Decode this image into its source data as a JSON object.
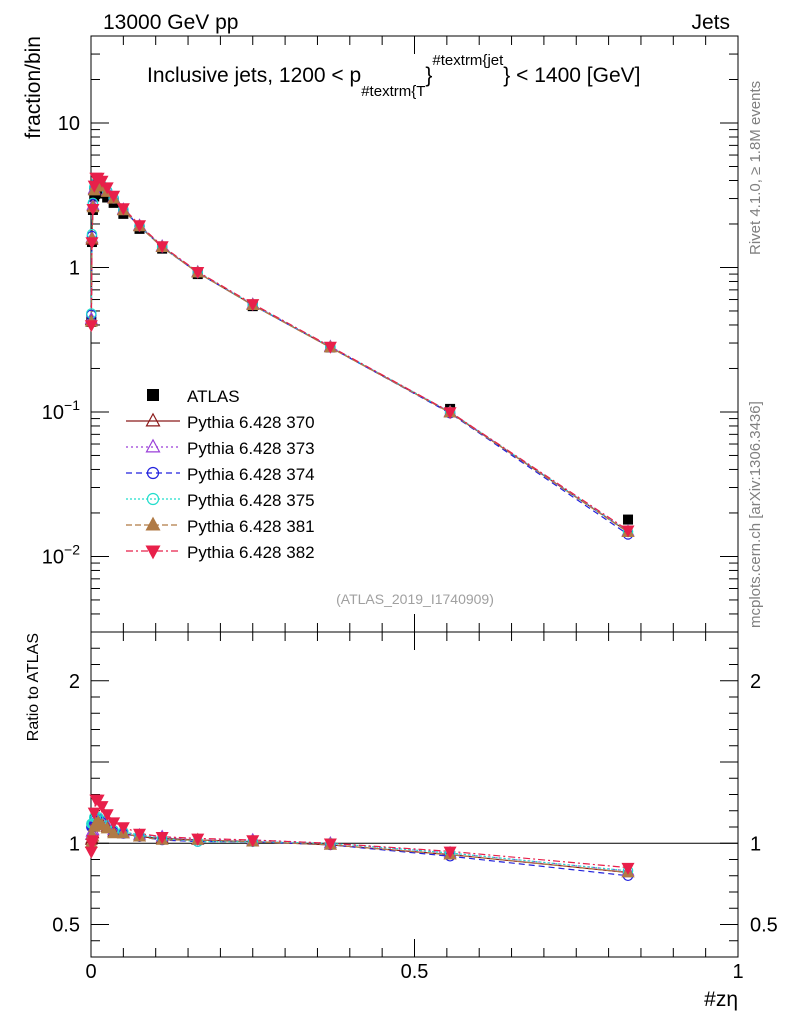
{
  "header": {
    "left": "13000 GeV pp",
    "right": "Jets"
  },
  "side_labels": {
    "rivet": "Rivet 4.1.0, ≥ 1.8M events",
    "mcplots": "mcplots.cern.ch [arXiv:1306.3436]"
  },
  "chart_data": {
    "type": "line",
    "title": {
      "prefix": "Inclusive jets, 1200 < p",
      "sub": "#textrm{T",
      "brace": "}",
      "sup": "#textrm{jet",
      "suffix": "} < 1400 [GeV]"
    },
    "watermark": "(ATLAS_2019_I1740909)",
    "xlabel": "#zη",
    "ylabel": "fraction/bin",
    "ratio_ylabel": "Ratio to ATLAS",
    "xlim": [
      0,
      1
    ],
    "ylim_main": [
      0.003,
      40
    ],
    "ylim_ratio": [
      0.3,
      2.3
    ],
    "x_ticks": [
      {
        "value": 0,
        "label": "0"
      },
      {
        "value": 0.5,
        "label": "0.5"
      },
      {
        "value": 1,
        "label": "1"
      }
    ],
    "y_ticks_main": [
      {
        "value": 10,
        "label": "10"
      },
      {
        "value": 1,
        "label": "1"
      },
      {
        "value": 0.1,
        "base": "10",
        "exp": "−1"
      },
      {
        "value": 0.01,
        "base": "10",
        "exp": "−2"
      }
    ],
    "y_ticks_ratio": [
      {
        "value": 2,
        "label": "2"
      },
      {
        "value": 1,
        "label": "1"
      },
      {
        "value": 0.5,
        "label": "0.5"
      }
    ],
    "x": [
      0.0005,
      0.0015,
      0.003,
      0.005,
      0.0075,
      0.011,
      0.017,
      0.025,
      0.035,
      0.05,
      0.075,
      0.11,
      0.165,
      0.25,
      0.37,
      0.555,
      0.83
    ],
    "data": {
      "name": "ATLAS",
      "values": [
        0.42,
        1.5,
        2.5,
        3.1,
        3.3,
        3.3,
        3.25,
        3.05,
        2.8,
        2.35,
        1.85,
        1.35,
        0.9,
        0.54,
        0.28,
        0.105,
        0.018
      ]
    },
    "series": [
      {
        "name": "Pythia 6.428 370",
        "color": "#8b1a1a",
        "dash": "",
        "marker": "triangle-open",
        "values": [
          0.43,
          1.55,
          2.65,
          3.45,
          3.75,
          3.75,
          3.65,
          3.35,
          3.0,
          2.5,
          1.93,
          1.39,
          0.92,
          0.55,
          0.28,
          0.099,
          0.0148
        ],
        "ratio": [
          1.02,
          1.03,
          1.06,
          1.11,
          1.14,
          1.14,
          1.12,
          1.1,
          1.07,
          1.06,
          1.04,
          1.03,
          1.02,
          1.01,
          0.99,
          0.93,
          0.82
        ]
      },
      {
        "name": "Pythia 6.428 373",
        "color": "#9a3fd8",
        "dash": "2,3",
        "marker": "triangle-open",
        "values": [
          0.44,
          1.6,
          2.7,
          3.5,
          3.8,
          3.8,
          3.7,
          3.4,
          3.02,
          2.52,
          1.95,
          1.4,
          0.93,
          0.555,
          0.283,
          0.1,
          0.0149
        ],
        "ratio": [
          1.05,
          1.07,
          1.08,
          1.13,
          1.15,
          1.15,
          1.14,
          1.11,
          1.08,
          1.07,
          1.05,
          1.04,
          1.02,
          1.02,
          1.0,
          0.94,
          0.83
        ]
      },
      {
        "name": "Pythia 6.428 374",
        "color": "#2222dd",
        "dash": "6,4",
        "marker": "circle-open",
        "values": [
          0.47,
          1.65,
          2.75,
          3.55,
          3.8,
          3.78,
          3.68,
          3.38,
          3.0,
          2.5,
          1.93,
          1.38,
          0.92,
          0.55,
          0.28,
          0.098,
          0.0142
        ],
        "ratio": [
          1.1,
          1.1,
          1.1,
          1.14,
          1.15,
          1.15,
          1.13,
          1.11,
          1.07,
          1.06,
          1.04,
          1.02,
          1.01,
          1.01,
          0.99,
          0.92,
          0.8
        ]
      },
      {
        "name": "Pythia 6.428 375",
        "color": "#22ddcc",
        "dash": "2,2",
        "marker": "circle-open",
        "values": [
          0.48,
          1.7,
          2.8,
          3.6,
          3.85,
          3.82,
          3.7,
          3.4,
          3.02,
          2.52,
          1.94,
          1.39,
          0.925,
          0.552,
          0.282,
          0.1,
          0.0148
        ],
        "ratio": [
          1.12,
          1.12,
          1.12,
          1.16,
          1.16,
          1.16,
          1.14,
          1.11,
          1.08,
          1.07,
          1.05,
          1.03,
          1.01,
          1.01,
          1.0,
          0.94,
          0.83
        ]
      },
      {
        "name": "Pythia 6.428 381",
        "color": "#b07a45",
        "dash": "6,3",
        "marker": "triangle-filled",
        "values": [
          0.42,
          1.58,
          2.6,
          3.4,
          3.7,
          3.72,
          3.62,
          3.32,
          2.98,
          2.48,
          1.92,
          1.38,
          0.92,
          0.548,
          0.279,
          0.099,
          0.0147
        ],
        "ratio": [
          1.0,
          1.05,
          1.04,
          1.1,
          1.12,
          1.13,
          1.11,
          1.09,
          1.06,
          1.06,
          1.04,
          1.02,
          1.02,
          1.01,
          0.99,
          0.93,
          0.82
        ]
      },
      {
        "name": "Pythia 6.428 382",
        "color": "#e8204a",
        "dash": "7,3,2,3",
        "marker": "triangle-down-filled",
        "values": [
          0.4,
          1.5,
          2.55,
          3.7,
          4.2,
          4.2,
          4.0,
          3.6,
          3.15,
          2.58,
          1.97,
          1.41,
          0.935,
          0.56,
          0.284,
          0.1,
          0.0152
        ],
        "ratio": [
          0.95,
          1.0,
          1.02,
          1.19,
          1.27,
          1.27,
          1.23,
          1.18,
          1.13,
          1.1,
          1.06,
          1.04,
          1.03,
          1.02,
          1.0,
          0.95,
          0.85
        ]
      }
    ]
  }
}
